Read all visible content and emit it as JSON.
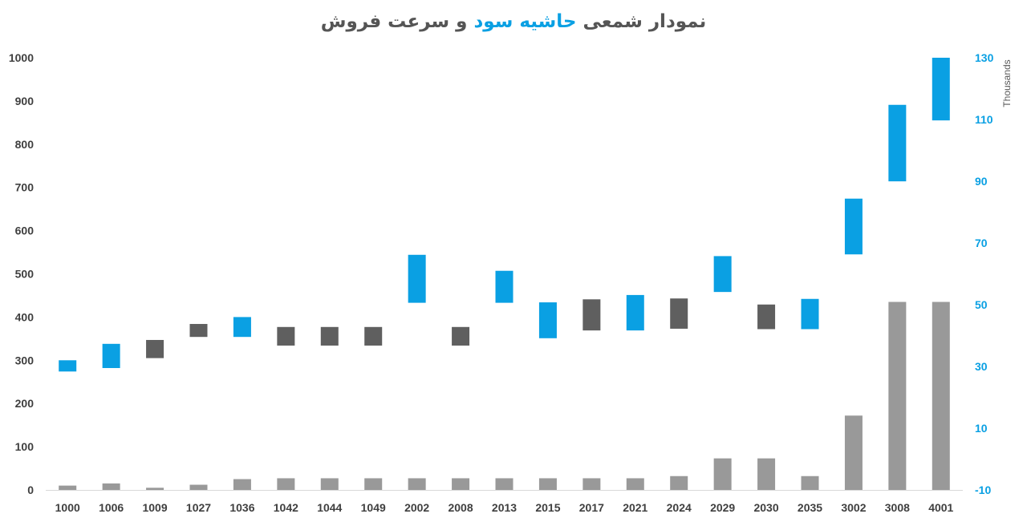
{
  "chart_data": {
    "type": "bar",
    "title": {
      "part1": "نمودار شمعی ",
      "part2": "حاشیه سود",
      "part3": " و سرعت فروش"
    },
    "categories": [
      "1000",
      "1006",
      "1009",
      "1027",
      "1036",
      "1042",
      "1044",
      "1049",
      "2002",
      "2008",
      "2013",
      "2015",
      "2017",
      "2021",
      "2024",
      "2029",
      "2030",
      "2035",
      "3002",
      "3008",
      "4001"
    ],
    "left_axis": {
      "ticks": [
        "0",
        "100",
        "200",
        "300",
        "400",
        "500",
        "600",
        "700",
        "800",
        "900",
        "1000"
      ],
      "range": [
        0,
        1000
      ]
    },
    "right_axis": {
      "ticks": [
        "-10",
        "10",
        "30",
        "50",
        "70",
        "90",
        "110",
        "130"
      ],
      "range": [
        -10,
        130
      ],
      "label": "Thousands"
    },
    "series": [
      {
        "kind": "bar",
        "axis": "left",
        "color": "#999999",
        "values": [
          10,
          15,
          5,
          12,
          25,
          27,
          27,
          27,
          27,
          27,
          27,
          27,
          27,
          27,
          32,
          73,
          73,
          32,
          172,
          435,
          435
        ]
      },
      {
        "kind": "candle",
        "axis": "left",
        "colors": {
          "up": "#0aa0e3",
          "down": "#5f5f5f"
        },
        "candles": [
          {
            "low": 274,
            "high": 300,
            "dir": "up"
          },
          {
            "low": 282,
            "high": 338,
            "dir": "up"
          },
          {
            "low": 305,
            "high": 347,
            "dir": "down"
          },
          {
            "low": 354,
            "high": 384,
            "dir": "down"
          },
          {
            "low": 354,
            "high": 400,
            "dir": "up"
          },
          {
            "low": 334,
            "high": 377,
            "dir": "down"
          },
          {
            "low": 334,
            "high": 377,
            "dir": "down"
          },
          {
            "low": 334,
            "high": 377,
            "dir": "down"
          },
          {
            "low": 433,
            "high": 544,
            "dir": "up"
          },
          {
            "low": 334,
            "high": 377,
            "dir": "down"
          },
          {
            "low": 433,
            "high": 507,
            "dir": "up"
          },
          {
            "low": 351,
            "high": 434,
            "dir": "up"
          },
          {
            "low": 369,
            "high": 441,
            "dir": "down"
          },
          {
            "low": 369,
            "high": 451,
            "dir": "up"
          },
          {
            "low": 373,
            "high": 443,
            "dir": "down"
          },
          {
            "low": 458,
            "high": 541,
            "dir": "up"
          },
          {
            "low": 372,
            "high": 429,
            "dir": "down"
          },
          {
            "low": 372,
            "high": 442,
            "dir": "up"
          },
          {
            "low": 545,
            "high": 674,
            "dir": "up"
          },
          {
            "low": 714,
            "high": 891,
            "dir": "up"
          },
          {
            "low": 855,
            "high": 1000,
            "dir": "up"
          }
        ]
      }
    ],
    "colors": {
      "left_tick": "#3f3f3f",
      "right_tick": "#0aa0e3",
      "category_tick": "#3f3f3f",
      "title": "#555555",
      "title_accent": "#0aa0e3",
      "axis_line": "#d9d9d9"
    },
    "grid": false,
    "legend": "none"
  }
}
